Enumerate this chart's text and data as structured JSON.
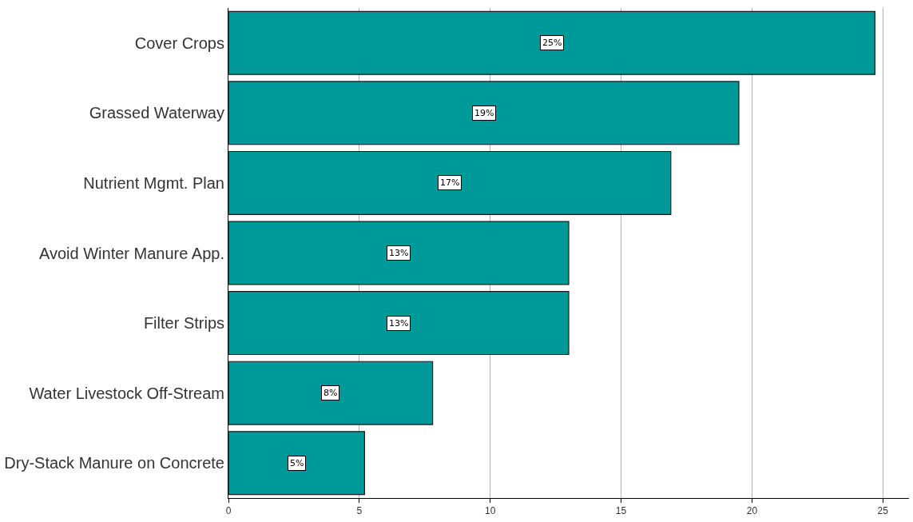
{
  "chart_data": {
    "type": "bar",
    "orientation": "horizontal",
    "categories": [
      "Cover Crops",
      "Grassed Waterway",
      "Nutrient Mgmt. Plan",
      "Avoid Winter Manure App.",
      "Filter Strips",
      "Water Livestock Off-Stream",
      "Dry-Stack Manure on Concrete"
    ],
    "values": [
      24.7,
      19.5,
      16.9,
      13.0,
      13.0,
      7.8,
      5.2
    ],
    "value_labels": [
      "25%",
      "19%",
      "17%",
      "13%",
      "13%",
      "8%",
      "5%"
    ],
    "color": "#009999",
    "xlim": [
      0,
      26
    ],
    "xticks": [
      0,
      5,
      10,
      15,
      20,
      25
    ],
    "grid": "x"
  }
}
